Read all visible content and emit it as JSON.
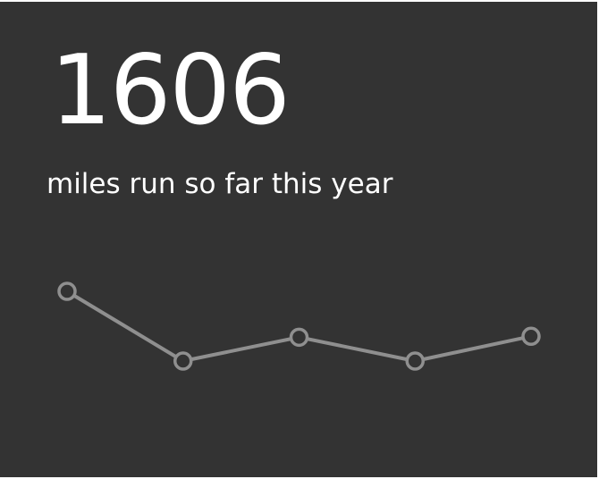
{
  "widget": {
    "value": "1606",
    "label": "miles run so far this year"
  },
  "colors": {
    "background": "#333333",
    "text": "#ffffff",
    "line": "#8f8f8f"
  },
  "chart_data": {
    "type": "line",
    "title": "",
    "xlabel": "",
    "ylabel": "",
    "series": [
      {
        "values": [
          354,
          278,
          304,
          278,
          305
        ]
      }
    ]
  }
}
